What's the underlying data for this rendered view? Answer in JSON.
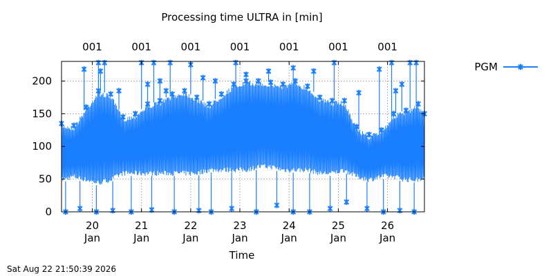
{
  "chart_data": {
    "type": "line",
    "title": "Processing time ULTRA in [min]",
    "xlabel": "Time",
    "ylabel": "",
    "ylim": [
      0,
      230
    ],
    "yticks": [
      0,
      50,
      100,
      150,
      200
    ],
    "grid": true,
    "legend_position": "right",
    "x_range": [
      "2026-01-19T09:00",
      "2026-01-26T18:00"
    ],
    "xticks": [
      {
        "date": "2026-01-20",
        "day": "20",
        "month": "Jan"
      },
      {
        "date": "2026-01-21",
        "day": "21",
        "month": "Jan"
      },
      {
        "date": "2026-01-22",
        "day": "22",
        "month": "Jan"
      },
      {
        "date": "2026-01-23",
        "day": "23",
        "month": "Jan"
      },
      {
        "date": "2026-01-24",
        "day": "24",
        "month": "Jan"
      },
      {
        "date": "2026-01-25",
        "day": "25",
        "month": "Jan"
      },
      {
        "date": "2026-01-26",
        "day": "26",
        "month": "Jan"
      }
    ],
    "top_axis_labels": [
      {
        "date": "2026-01-20",
        "label": "001"
      },
      {
        "date": "2026-01-21",
        "label": "001"
      },
      {
        "date": "2026-01-22",
        "label": "001"
      },
      {
        "date": "2026-01-23",
        "label": "001"
      },
      {
        "date": "2026-01-24",
        "label": "001"
      },
      {
        "date": "2026-01-25",
        "label": "001"
      },
      {
        "date": "2026-01-26",
        "label": "001"
      }
    ],
    "series": [
      {
        "name": "PGM",
        "color": "#1a7fff",
        "marker": "x",
        "envelope": [
          {
            "x": "2026-01-19T09:00",
            "low": 45,
            "high": 135
          },
          {
            "x": "2026-01-19T15:00",
            "low": 50,
            "high": 132
          },
          {
            "x": "2026-01-19T21:00",
            "low": 45,
            "high": 160
          },
          {
            "x": "2026-01-20T03:00",
            "low": 40,
            "high": 185
          },
          {
            "x": "2026-01-20T09:00",
            "low": 45,
            "high": 180
          },
          {
            "x": "2026-01-20T15:00",
            "low": 55,
            "high": 145
          },
          {
            "x": "2026-01-20T21:00",
            "low": 55,
            "high": 150
          },
          {
            "x": "2026-01-21T03:00",
            "low": 55,
            "high": 165
          },
          {
            "x": "2026-01-21T09:00",
            "low": 55,
            "high": 170
          },
          {
            "x": "2026-01-21T15:00",
            "low": 55,
            "high": 180
          },
          {
            "x": "2026-01-21T21:00",
            "low": 55,
            "high": 185
          },
          {
            "x": "2026-01-22T03:00",
            "low": 55,
            "high": 175
          },
          {
            "x": "2026-01-22T09:00",
            "low": 60,
            "high": 165
          },
          {
            "x": "2026-01-22T15:00",
            "low": 60,
            "high": 180
          },
          {
            "x": "2026-01-22T21:00",
            "low": 60,
            "high": 195
          },
          {
            "x": "2026-01-23T03:00",
            "low": 60,
            "high": 200
          },
          {
            "x": "2026-01-23T09:00",
            "low": 65,
            "high": 200
          },
          {
            "x": "2026-01-23T15:00",
            "low": 65,
            "high": 198
          },
          {
            "x": "2026-01-23T21:00",
            "low": 60,
            "high": 195
          },
          {
            "x": "2026-01-24T03:00",
            "low": 60,
            "high": 200
          },
          {
            "x": "2026-01-24T09:00",
            "low": 60,
            "high": 192
          },
          {
            "x": "2026-01-24T15:00",
            "low": 55,
            "high": 175
          },
          {
            "x": "2026-01-24T21:00",
            "low": 55,
            "high": 170
          },
          {
            "x": "2026-01-25T03:00",
            "low": 60,
            "high": 170
          },
          {
            "x": "2026-01-25T09:00",
            "low": 50,
            "high": 130
          },
          {
            "x": "2026-01-25T15:00",
            "low": 45,
            "high": 118
          },
          {
            "x": "2026-01-25T21:00",
            "low": 50,
            "high": 125
          },
          {
            "x": "2026-01-26T03:00",
            "low": 50,
            "high": 150
          },
          {
            "x": "2026-01-26T09:00",
            "low": 45,
            "high": 155
          },
          {
            "x": "2026-01-26T15:00",
            "low": 45,
            "high": 165
          },
          {
            "x": "2026-01-26T18:00",
            "low": 50,
            "high": 150
          }
        ],
        "spikes": [
          {
            "x": "2026-01-19T20:00",
            "y": 218
          },
          {
            "x": "2026-01-20T03:00",
            "y": 228
          },
          {
            "x": "2026-01-20T04:00",
            "y": 215
          },
          {
            "x": "2026-01-20T06:00",
            "y": 228
          },
          {
            "x": "2026-01-20T13:00",
            "y": 185
          },
          {
            "x": "2026-01-21T00:00",
            "y": 228
          },
          {
            "x": "2026-01-21T03:00",
            "y": 195
          },
          {
            "x": "2026-01-21T06:00",
            "y": 228
          },
          {
            "x": "2026-01-21T09:00",
            "y": 200
          },
          {
            "x": "2026-01-21T12:00",
            "y": 185
          },
          {
            "x": "2026-01-21T14:00",
            "y": 228
          },
          {
            "x": "2026-01-22T00:00",
            "y": 225
          },
          {
            "x": "2026-01-22T06:00",
            "y": 205
          },
          {
            "x": "2026-01-22T12:00",
            "y": 200
          },
          {
            "x": "2026-01-22T22:00",
            "y": 228
          },
          {
            "x": "2026-01-23T03:00",
            "y": 210
          },
          {
            "x": "2026-01-23T14:00",
            "y": 215
          },
          {
            "x": "2026-01-24T02:00",
            "y": 220
          },
          {
            "x": "2026-01-24T12:00",
            "y": 215
          },
          {
            "x": "2026-01-24T22:00",
            "y": 228
          },
          {
            "x": "2026-01-25T10:00",
            "y": 182
          },
          {
            "x": "2026-01-25T20:00",
            "y": 218
          },
          {
            "x": "2026-01-26T02:00",
            "y": 228
          },
          {
            "x": "2026-01-26T04:00",
            "y": 185
          },
          {
            "x": "2026-01-26T07:00",
            "y": 195
          },
          {
            "x": "2026-01-26T11:00",
            "y": 228
          },
          {
            "x": "2026-01-26T14:00",
            "y": 228
          }
        ],
        "dips": [
          {
            "x": "2026-01-19T11:00",
            "y": 0
          },
          {
            "x": "2026-01-19T18:00",
            "y": 5
          },
          {
            "x": "2026-01-20T02:00",
            "y": 0
          },
          {
            "x": "2026-01-20T10:00",
            "y": 2
          },
          {
            "x": "2026-01-20T19:00",
            "y": 0
          },
          {
            "x": "2026-01-21T05:00",
            "y": 3
          },
          {
            "x": "2026-01-21T16:00",
            "y": 0
          },
          {
            "x": "2026-01-22T04:00",
            "y": 2
          },
          {
            "x": "2026-01-22T10:00",
            "y": 0
          },
          {
            "x": "2026-01-22T20:00",
            "y": 5
          },
          {
            "x": "2026-01-23T08:00",
            "y": 0
          },
          {
            "x": "2026-01-23T18:00",
            "y": 10
          },
          {
            "x": "2026-01-24T02:00",
            "y": 0
          },
          {
            "x": "2026-01-24T10:00",
            "y": 0
          },
          {
            "x": "2026-01-24T20:00",
            "y": 5
          },
          {
            "x": "2026-01-25T04:00",
            "y": 15
          },
          {
            "x": "2026-01-25T14:00",
            "y": 5
          },
          {
            "x": "2026-01-25T22:00",
            "y": 0
          },
          {
            "x": "2026-01-26T06:00",
            "y": 2
          },
          {
            "x": "2026-01-26T13:00",
            "y": 0
          }
        ]
      }
    ]
  },
  "timestamp": "Sat Aug 22 21:50:39 2026"
}
